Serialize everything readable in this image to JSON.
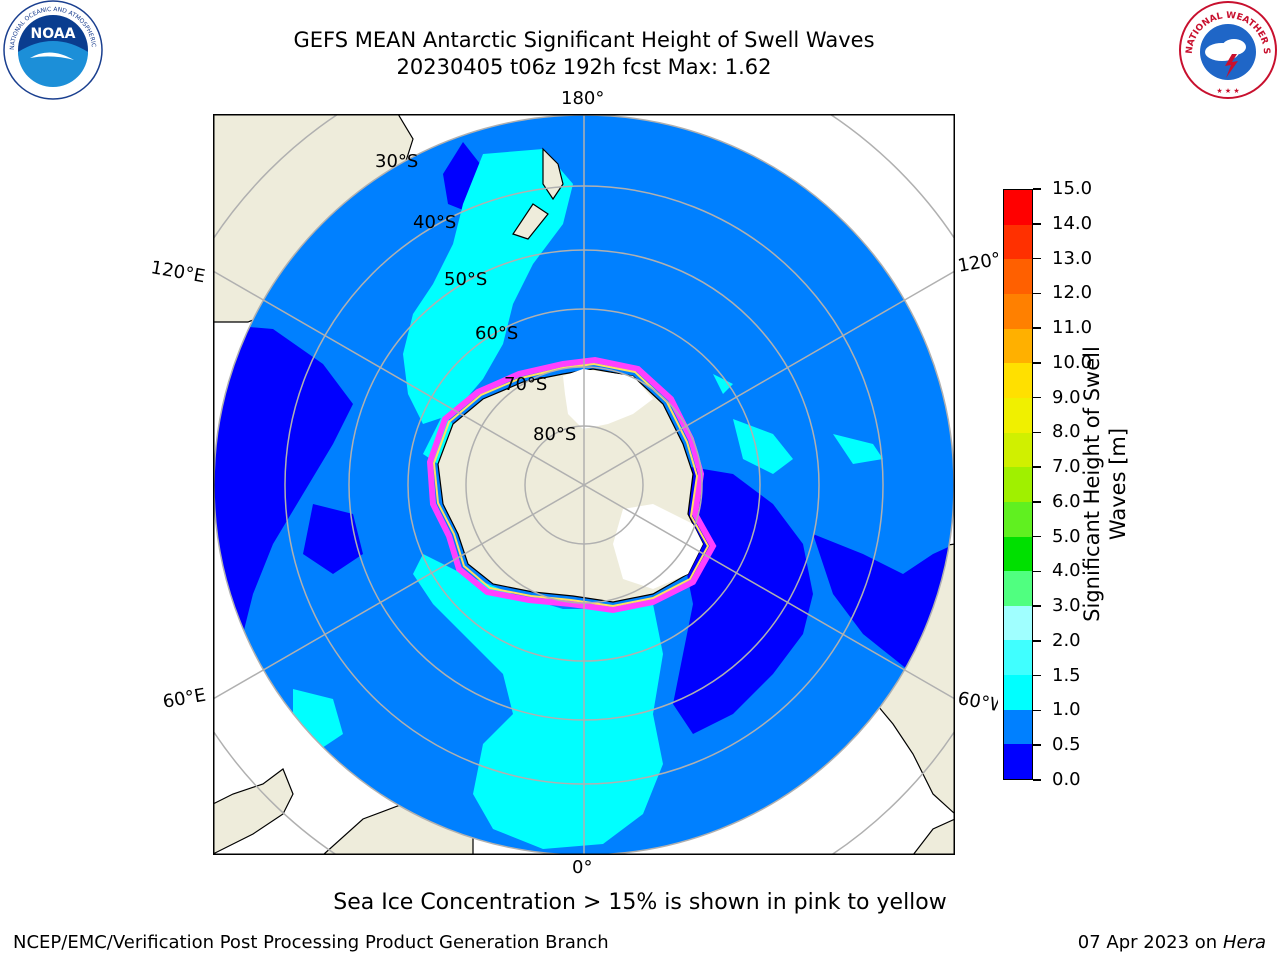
{
  "header": {
    "title_line1": "GEFS MEAN Antarctic Significant Height of Swell Waves",
    "title_line2": "20230405 t06z 192h fcst   Max: 1.62"
  },
  "logos": {
    "noaa_text": "NOAA",
    "noaa_ring": "NATIONAL OCEANIC AND ATMOSPHERIC ADMINISTRATION · U.S. DEPARTMENT OF COMMERCE",
    "nws_ring": "NATIONAL WEATHER SERVICE"
  },
  "map": {
    "longitude_labels": {
      "top": "180°",
      "bottom": "0°",
      "left_upper": "120°E",
      "left_lower": "60°E",
      "right_upper": "120°W",
      "right_lower": "60°W"
    },
    "latitude_labels": [
      "30°S",
      "40°S",
      "50°S",
      "60°S",
      "70°S",
      "80°S"
    ]
  },
  "colorbar": {
    "label": "Significant Height of Swell Waves [m]",
    "ticks": [
      "0.0",
      "0.5",
      "1.0",
      "1.5",
      "2.0",
      "3.0",
      "4.0",
      "5.0",
      "6.0",
      "7.0",
      "8.0",
      "9.0",
      "10.0",
      "11.0",
      "12.0",
      "13.0",
      "14.0",
      "15.0"
    ],
    "colors": [
      "#0000ff",
      "#0080ff",
      "#00ffff",
      "#40ffff",
      "#a0ffff",
      "#50ff80",
      "#00e000",
      "#60f020",
      "#a0f000",
      "#d0f000",
      "#f0f000",
      "#ffe000",
      "#ffb000",
      "#ff8000",
      "#ff6000",
      "#ff3000",
      "#ff0000"
    ]
  },
  "footer": {
    "note": "Sea Ice Concentration > 15% is shown in pink to yellow",
    "credit": "NCEP/EMC/Verification Post Processing Product Generation Branch",
    "date": "07 Apr 2023 on ",
    "host": "Hera"
  }
}
